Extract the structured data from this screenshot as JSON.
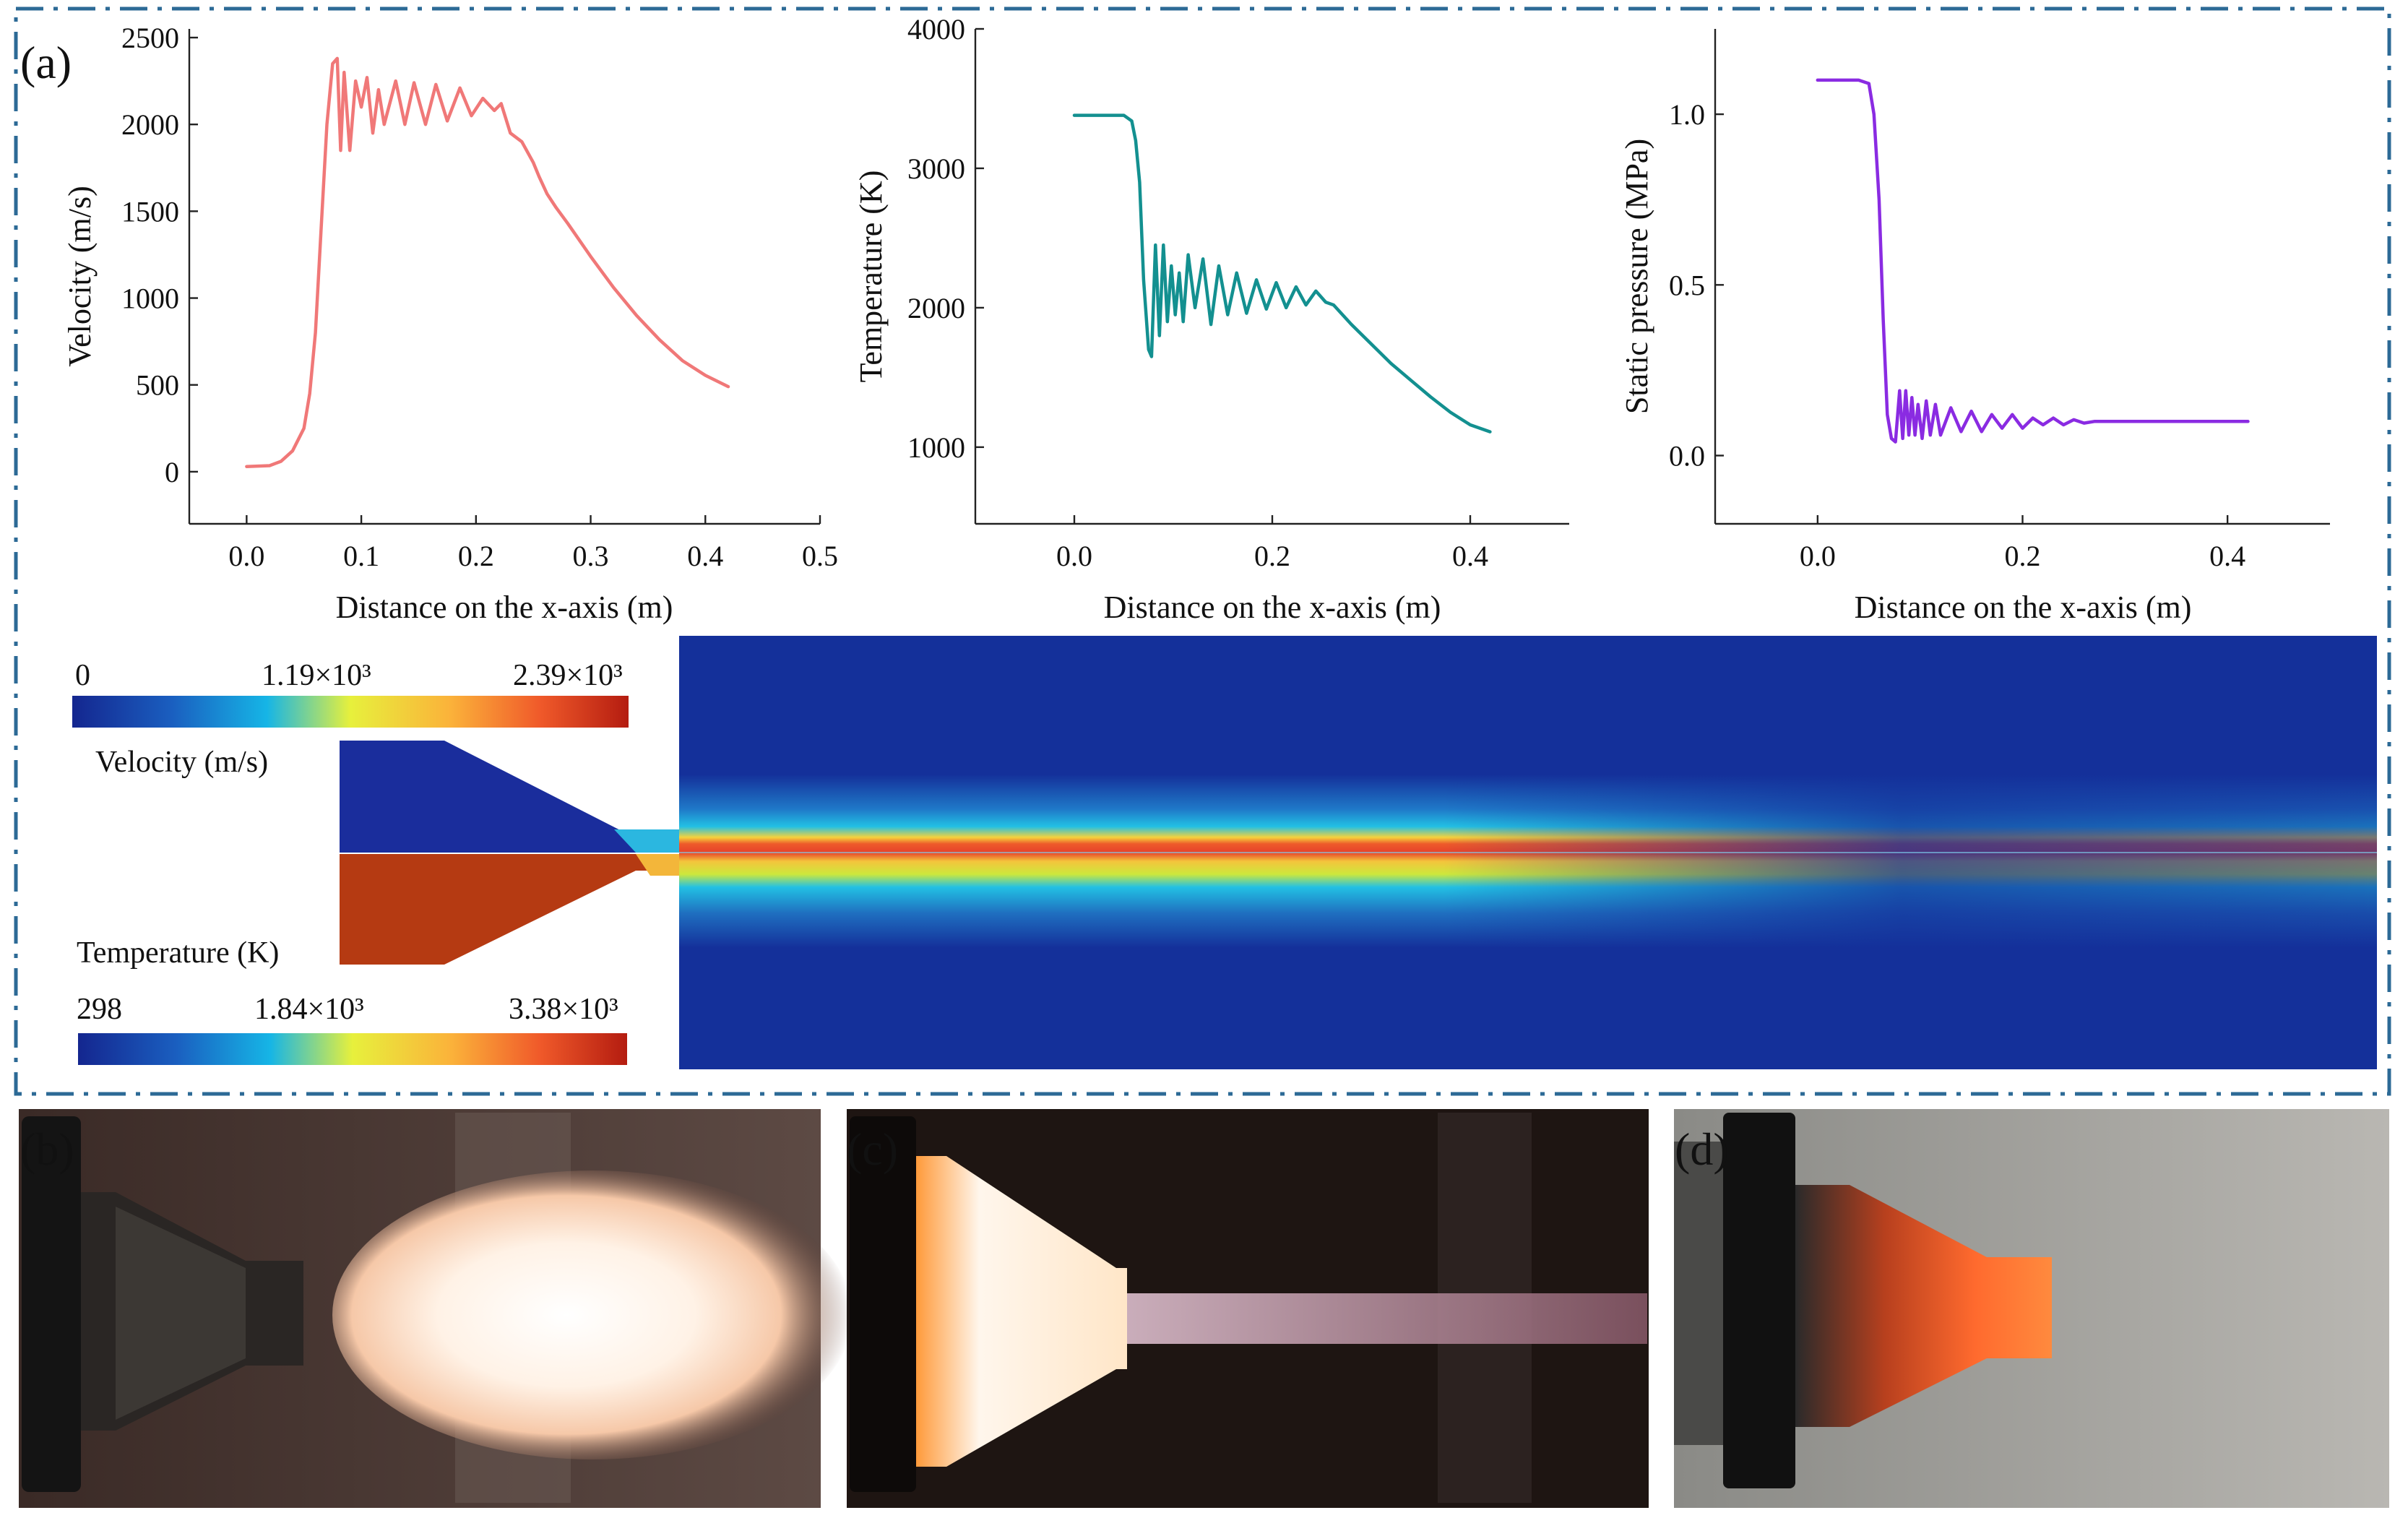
{
  "panel_labels": {
    "a": "(a)",
    "b": "(b)",
    "c": "(c)",
    "d": "(d)"
  },
  "colors": {
    "frame": "#2c6a96",
    "velocity": "#f07878",
    "temperature": "#139090",
    "pressure": "#8a2be2",
    "field_background": "#14309a"
  },
  "chart_data": [
    {
      "type": "line",
      "name": "velocity",
      "title": "",
      "xlabel": "Distance on the x-axis (m)",
      "ylabel": "Velocity (m/s)",
      "xlim": [
        -0.05,
        0.5
      ],
      "ylim": [
        -300,
        2550
      ],
      "xticks": [
        0.0,
        0.1,
        0.2,
        0.3,
        0.4,
        0.5
      ],
      "xtick_labels": [
        "0.0",
        "0.1",
        "0.2",
        "0.3",
        "0.4",
        "0.5"
      ],
      "yticks": [
        0,
        500,
        1000,
        1500,
        2000,
        2500
      ],
      "ytick_labels": [
        "0",
        "500",
        "1000",
        "1500",
        "2000",
        "2500"
      ],
      "series": [
        {
          "name": "Velocity",
          "color": "#f07878",
          "x": [
            0.0,
            0.02,
            0.03,
            0.04,
            0.05,
            0.055,
            0.06,
            0.065,
            0.07,
            0.075,
            0.079,
            0.082,
            0.085,
            0.09,
            0.095,
            0.1,
            0.105,
            0.11,
            0.115,
            0.12,
            0.13,
            0.138,
            0.146,
            0.156,
            0.165,
            0.175,
            0.186,
            0.196,
            0.206,
            0.216,
            0.222,
            0.23,
            0.24,
            0.25,
            0.255,
            0.262,
            0.27,
            0.28,
            0.3,
            0.32,
            0.34,
            0.36,
            0.38,
            0.4,
            0.42
          ],
          "y": [
            30,
            35,
            60,
            120,
            250,
            450,
            800,
            1400,
            2000,
            2350,
            2380,
            1850,
            2300,
            1850,
            2250,
            2100,
            2270,
            1950,
            2200,
            2000,
            2250,
            2000,
            2240,
            2000,
            2230,
            2020,
            2210,
            2050,
            2150,
            2080,
            2120,
            1950,
            1900,
            1780,
            1700,
            1600,
            1520,
            1430,
            1240,
            1060,
            900,
            760,
            640,
            555,
            490
          ]
        }
      ]
    },
    {
      "type": "line",
      "name": "temperature",
      "title": "",
      "xlabel": "Distance on the x-axis (m)",
      "ylabel": "Temperature (K)",
      "xlim": [
        -0.1,
        0.5
      ],
      "ylim": [
        450,
        4000
      ],
      "xticks": [
        0.0,
        0.2,
        0.4
      ],
      "xtick_labels": [
        "0.0",
        "0.2",
        "0.4"
      ],
      "yticks": [
        1000,
        2000,
        3000,
        4000
      ],
      "ytick_labels": [
        "1000",
        "2000",
        "3000",
        "4000"
      ],
      "series": [
        {
          "name": "Temperature",
          "color": "#139090",
          "x": [
            0.0,
            0.03,
            0.05,
            0.058,
            0.062,
            0.066,
            0.07,
            0.075,
            0.078,
            0.082,
            0.086,
            0.09,
            0.094,
            0.098,
            0.102,
            0.106,
            0.11,
            0.115,
            0.122,
            0.13,
            0.138,
            0.146,
            0.155,
            0.164,
            0.174,
            0.184,
            0.194,
            0.204,
            0.214,
            0.224,
            0.234,
            0.244,
            0.254,
            0.262,
            0.28,
            0.3,
            0.32,
            0.34,
            0.36,
            0.38,
            0.4,
            0.42
          ],
          "y": [
            3380,
            3380,
            3380,
            3340,
            3200,
            2900,
            2200,
            1700,
            1650,
            2450,
            1800,
            2450,
            1900,
            2300,
            1950,
            2250,
            1900,
            2380,
            2000,
            2350,
            1880,
            2300,
            1950,
            2250,
            1960,
            2200,
            1990,
            2180,
            2000,
            2150,
            2020,
            2120,
            2040,
            2020,
            1880,
            1740,
            1600,
            1480,
            1360,
            1250,
            1160,
            1110
          ]
        }
      ]
    },
    {
      "type": "line",
      "name": "static_pressure",
      "title": "",
      "xlabel": "Distance on the x-axis (m)",
      "ylabel": "Static pressure (MPa)",
      "xlim": [
        -0.1,
        0.5
      ],
      "ylim": [
        -0.2,
        1.25
      ],
      "xticks": [
        0.0,
        0.2,
        0.4
      ],
      "xtick_labels": [
        "0.0",
        "0.2",
        "0.4"
      ],
      "yticks": [
        0.0,
        0.5,
        1.0
      ],
      "ytick_labels": [
        "0.0",
        "0.5",
        "1.0"
      ],
      "series": [
        {
          "name": "Static pressure",
          "color": "#8a2be2",
          "x": [
            0.0,
            0.04,
            0.05,
            0.055,
            0.06,
            0.064,
            0.068,
            0.072,
            0.076,
            0.08,
            0.083,
            0.086,
            0.089,
            0.092,
            0.095,
            0.098,
            0.102,
            0.106,
            0.11,
            0.115,
            0.12,
            0.13,
            0.14,
            0.15,
            0.16,
            0.17,
            0.18,
            0.19,
            0.2,
            0.21,
            0.22,
            0.23,
            0.24,
            0.25,
            0.26,
            0.27,
            0.28,
            0.3,
            0.35,
            0.42
          ],
          "y": [
            1.1,
            1.1,
            1.09,
            1.0,
            0.75,
            0.4,
            0.12,
            0.05,
            0.04,
            0.19,
            0.05,
            0.19,
            0.06,
            0.17,
            0.06,
            0.15,
            0.05,
            0.16,
            0.06,
            0.15,
            0.06,
            0.14,
            0.07,
            0.13,
            0.07,
            0.12,
            0.08,
            0.12,
            0.08,
            0.11,
            0.09,
            0.11,
            0.09,
            0.105,
            0.095,
            0.1,
            0.1,
            0.1,
            0.1,
            0.1
          ]
        }
      ]
    }
  ],
  "contour": {
    "velocity_colorbar": {
      "title": "Velocity (m/s)",
      "min_label": "0",
      "mid_label": "1.19×10³",
      "max_label": "2.39×10³"
    },
    "temperature_colorbar": {
      "title": "Temperature (K)",
      "min_label": "298",
      "mid_label": "1.84×10³",
      "max_label": "3.38×10³"
    }
  }
}
